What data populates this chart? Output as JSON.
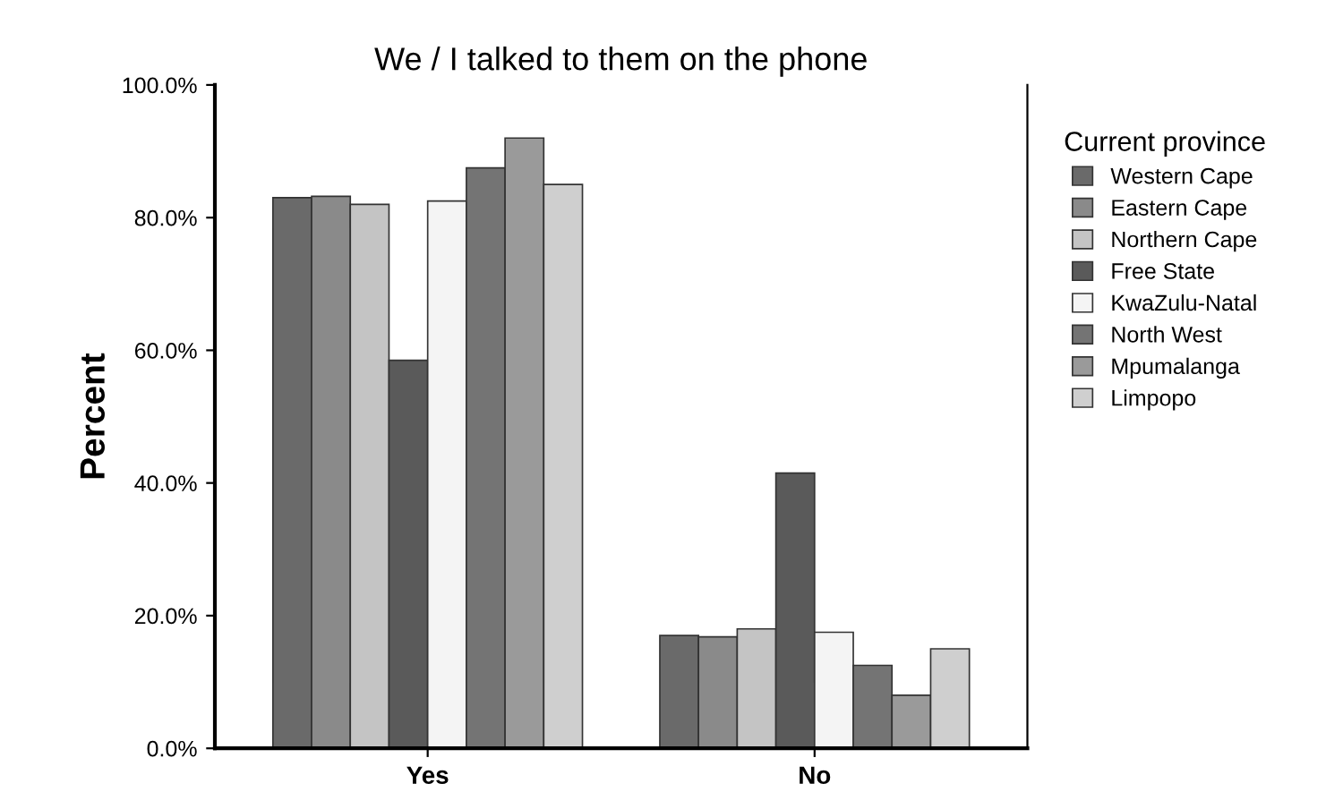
{
  "chart_data": {
    "type": "bar",
    "title": "We / I talked to them on the phone",
    "ylabel": "Percent",
    "legend_title": "Current province",
    "categories": [
      "Yes",
      "No"
    ],
    "series": [
      {
        "name": "Western Cape",
        "color": "#6a6a6a",
        "values": [
          83.0,
          17.0
        ]
      },
      {
        "name": "Eastern Cape",
        "color": "#8a8a8a",
        "values": [
          83.2,
          16.8
        ]
      },
      {
        "name": "Northern Cape",
        "color": "#c4c4c4",
        "values": [
          82.0,
          18.0
        ]
      },
      {
        "name": "Free State",
        "color": "#5a5a5a",
        "values": [
          58.5,
          41.5
        ]
      },
      {
        "name": "KwaZulu-Natal",
        "color": "#f4f4f4",
        "values": [
          82.5,
          17.5
        ]
      },
      {
        "name": "North West",
        "color": "#747474",
        "values": [
          87.5,
          12.5
        ]
      },
      {
        "name": "Mpumalanga",
        "color": "#9a9a9a",
        "values": [
          92.0,
          8.0
        ]
      },
      {
        "name": "Limpopo",
        "color": "#cfcfcf",
        "values": [
          85.0,
          15.0
        ]
      }
    ],
    "ylim": [
      0,
      100
    ],
    "yticks": [
      {
        "value": 0,
        "label": "0.0%"
      },
      {
        "value": 20,
        "label": "20.0%"
      },
      {
        "value": 40,
        "label": "40.0%"
      },
      {
        "value": 60,
        "label": "60.0%"
      },
      {
        "value": 80,
        "label": "80.0%"
      },
      {
        "value": 100,
        "label": "100.0%"
      }
    ],
    "grid": false,
    "legend": "right"
  }
}
